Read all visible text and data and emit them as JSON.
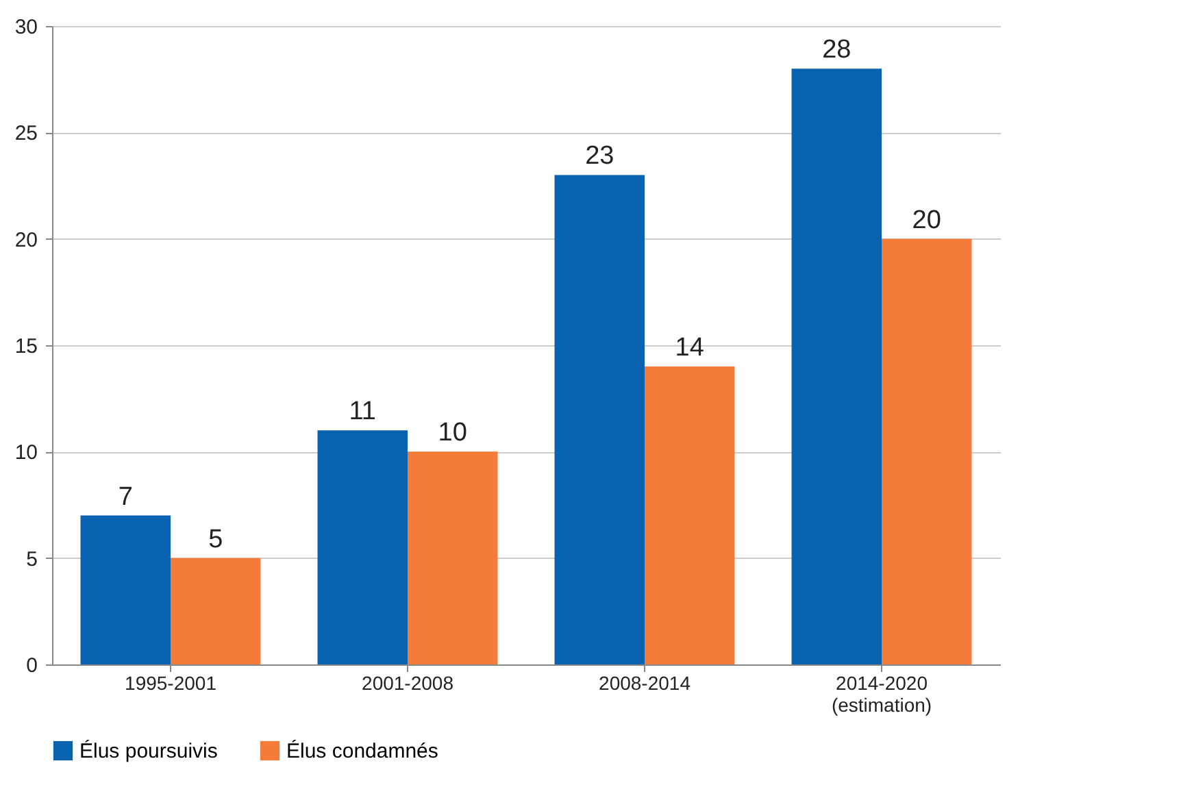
{
  "chart_data": {
    "type": "bar",
    "categories": [
      "1995-2001",
      "2001-2008",
      "2008-2014",
      "2014-2020 (estimation)"
    ],
    "series": [
      {
        "name": "Élus poursuivis",
        "color": "#0a63b0",
        "values": [
          7,
          11,
          23,
          28
        ]
      },
      {
        "name": "Élus condamnés",
        "color": "#f47b3a",
        "values": [
          5,
          10,
          14,
          20
        ]
      }
    ],
    "ylim": [
      0,
      30
    ],
    "yticks": [
      0,
      5,
      10,
      15,
      20,
      25,
      30
    ],
    "grid": "y",
    "legend": "bottom",
    "data_labels": true
  }
}
